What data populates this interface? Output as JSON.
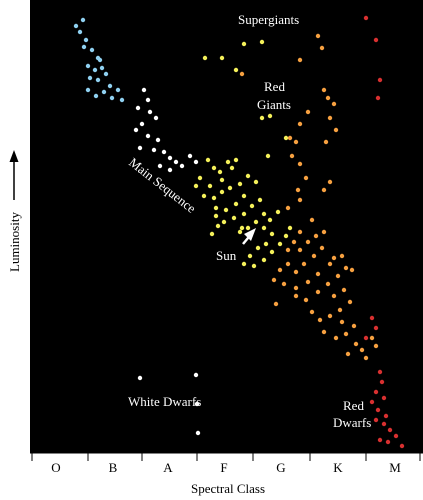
{
  "diagram": {
    "x_axis_title": "Spectral Class",
    "y_axis_title": "Luminosity",
    "spectral_classes": [
      "O",
      "B",
      "A",
      "F",
      "G",
      "K",
      "M"
    ],
    "labels": {
      "supergiants": "Supergiants",
      "red_giants_line1": "Red",
      "red_giants_line2": "Giants",
      "main_sequence": "Main Sequence",
      "sun": "Sun",
      "white_dwarfs": "White Dwarfs",
      "red_dwarfs_line1": "Red",
      "red_dwarfs_line2": "Dwarfs"
    },
    "colors": {
      "background": "#000000",
      "label_text": "#ffffff",
      "blue_stars": "#8fd0f0",
      "white_stars": "#ffffff",
      "yellow_stars": "#f4f05a",
      "orange_stars": "#f6a040",
      "red_stars": "#d83030"
    }
  }
}
